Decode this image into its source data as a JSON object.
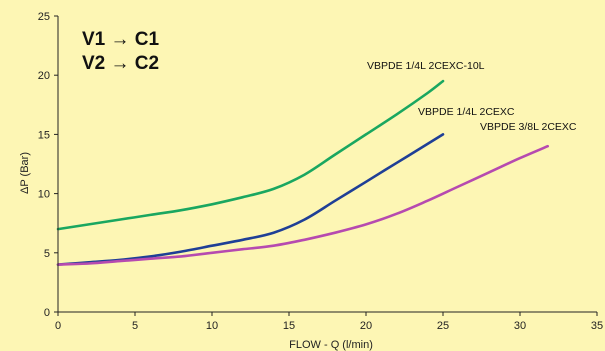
{
  "chart_data": {
    "type": "line",
    "title": "",
    "xlabel": "FLOW - Q (l/min)",
    "ylabel": "ΔP (Bar)",
    "xlim": [
      0,
      35
    ],
    "ylim": [
      0,
      25
    ],
    "xticks": [
      0,
      5,
      10,
      15,
      20,
      25,
      30,
      35
    ],
    "yticks": [
      0,
      5,
      10,
      15,
      20,
      25
    ],
    "grid": false,
    "annotations": [
      "V1 → C1",
      "V2 → C2"
    ],
    "series": [
      {
        "name": "VBPDE 1/4L 2CEXC-10L",
        "color": "#1aa760",
        "x": [
          0,
          2,
          4,
          6,
          8,
          10,
          12,
          14,
          16,
          18,
          20,
          22,
          24,
          25
        ],
        "y": [
          7.0,
          7.4,
          7.8,
          8.2,
          8.6,
          9.1,
          9.7,
          10.4,
          11.6,
          13.3,
          15.0,
          16.7,
          18.5,
          19.5
        ]
      },
      {
        "name": "VBPDE 1/4L 2CEXC",
        "color": "#1f3f96",
        "x": [
          0,
          2,
          4,
          6,
          8,
          10,
          12,
          14,
          16,
          18,
          20,
          22,
          24,
          25
        ],
        "y": [
          4.0,
          4.2,
          4.4,
          4.7,
          5.1,
          5.6,
          6.1,
          6.7,
          7.8,
          9.4,
          11.0,
          12.6,
          14.2,
          15.0
        ]
      },
      {
        "name": "VBPDE 3/8L 2CEXC",
        "color": "#b64ab0",
        "x": [
          0,
          2,
          4,
          6,
          8,
          10,
          12,
          14,
          16,
          18,
          20,
          22,
          24,
          26,
          28,
          30,
          31.8
        ],
        "y": [
          4.0,
          4.1,
          4.3,
          4.5,
          4.7,
          5.0,
          5.3,
          5.6,
          6.1,
          6.7,
          7.4,
          8.3,
          9.4,
          10.6,
          11.8,
          13.0,
          14.0
        ]
      }
    ]
  }
}
